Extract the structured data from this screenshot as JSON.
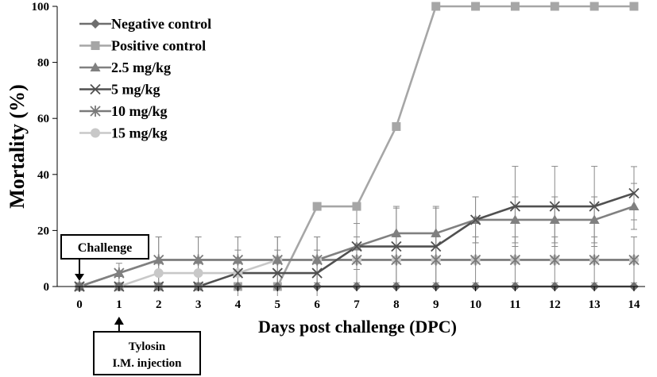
{
  "chart_data": {
    "type": "line",
    "xlabel": "Days post challenge (DPC)",
    "ylabel": "Mortality (%)",
    "x": [
      0,
      1,
      2,
      3,
      4,
      5,
      6,
      7,
      8,
      9,
      10,
      11,
      12,
      13,
      14
    ],
    "xlim": [
      0,
      14
    ],
    "ylim": [
      0,
      100
    ],
    "yticks": [
      0,
      20,
      40,
      60,
      80,
      100
    ],
    "grid": false,
    "legend_position": "top-left",
    "series": [
      {
        "name": "Negative control",
        "marker": "diamond",
        "color": "#6e6e6e",
        "values": [
          0,
          0,
          0,
          0,
          0,
          0,
          0,
          0,
          0,
          0,
          0,
          0,
          0,
          0,
          0
        ],
        "error": [
          0,
          0,
          0,
          0,
          0,
          0,
          0,
          0,
          0,
          0,
          0,
          0,
          0,
          0,
          0
        ]
      },
      {
        "name": "Positive control",
        "marker": "square",
        "color": "#a6a6a6",
        "values": [
          0,
          0,
          0,
          0,
          0,
          0,
          28.6,
          28.6,
          57.1,
          100,
          100,
          100,
          100,
          100,
          100
        ],
        "error": [
          0,
          0,
          0,
          0,
          0,
          0,
          0,
          0,
          0,
          0,
          0,
          0,
          0,
          0,
          0
        ]
      },
      {
        "name": "2.5 mg/kg",
        "marker": "triangle",
        "color": "#808080",
        "values": [
          0,
          4.8,
          9.5,
          9.5,
          9.5,
          9.5,
          9.5,
          14.3,
          19,
          19,
          23.8,
          23.8,
          23.8,
          23.8,
          28.6
        ],
        "error": [
          0,
          0,
          8.2,
          8.2,
          8.2,
          8.2,
          8.2,
          8.2,
          9,
          9,
          8.2,
          8.2,
          8.2,
          8.2,
          8.2
        ]
      },
      {
        "name": "5 mg/kg",
        "marker": "x",
        "color": "#505050",
        "values": [
          0,
          0,
          0,
          0,
          4.8,
          4.8,
          4.8,
          14.3,
          14.3,
          14.3,
          23.8,
          28.6,
          28.6,
          28.6,
          33.3
        ],
        "error": [
          0,
          0,
          0,
          0,
          8.2,
          8.2,
          8.2,
          14.3,
          14.3,
          14.3,
          8.2,
          14.3,
          14.3,
          14.3,
          9.5
        ]
      },
      {
        "name": "10 mg/kg",
        "marker": "asterisk",
        "color": "#7a7a7a",
        "values": [
          0,
          4.8,
          9.5,
          9.5,
          9.5,
          9.5,
          9.5,
          9.5,
          9.5,
          9.5,
          9.5,
          9.5,
          9.5,
          9.5,
          9.5
        ],
        "error": [
          0,
          3.5,
          8.2,
          8.2,
          8.2,
          8.2,
          8.2,
          8.2,
          8.2,
          8.2,
          8.2,
          8.2,
          8.2,
          8.2,
          8.2
        ]
      },
      {
        "name": "15 mg/kg",
        "marker": "circle",
        "color": "#c8c8c8",
        "values": [
          0,
          0,
          4.8,
          4.8,
          4.8,
          9.5,
          9.5,
          9.5,
          9.5,
          9.5,
          9.5,
          9.5,
          9.5,
          9.5,
          9.5
        ],
        "error": [
          0,
          0,
          0,
          0,
          0,
          0,
          0,
          0,
          0,
          0,
          0,
          0,
          0,
          0,
          0
        ]
      }
    ],
    "annotations": [
      {
        "text": "Challenge",
        "x": 0,
        "pointer": "down"
      },
      {
        "text": "Tylosin I.M. injection",
        "lines": [
          "Tylosin",
          "I.M. injection"
        ],
        "x": 1,
        "pointer": "up"
      }
    ]
  }
}
